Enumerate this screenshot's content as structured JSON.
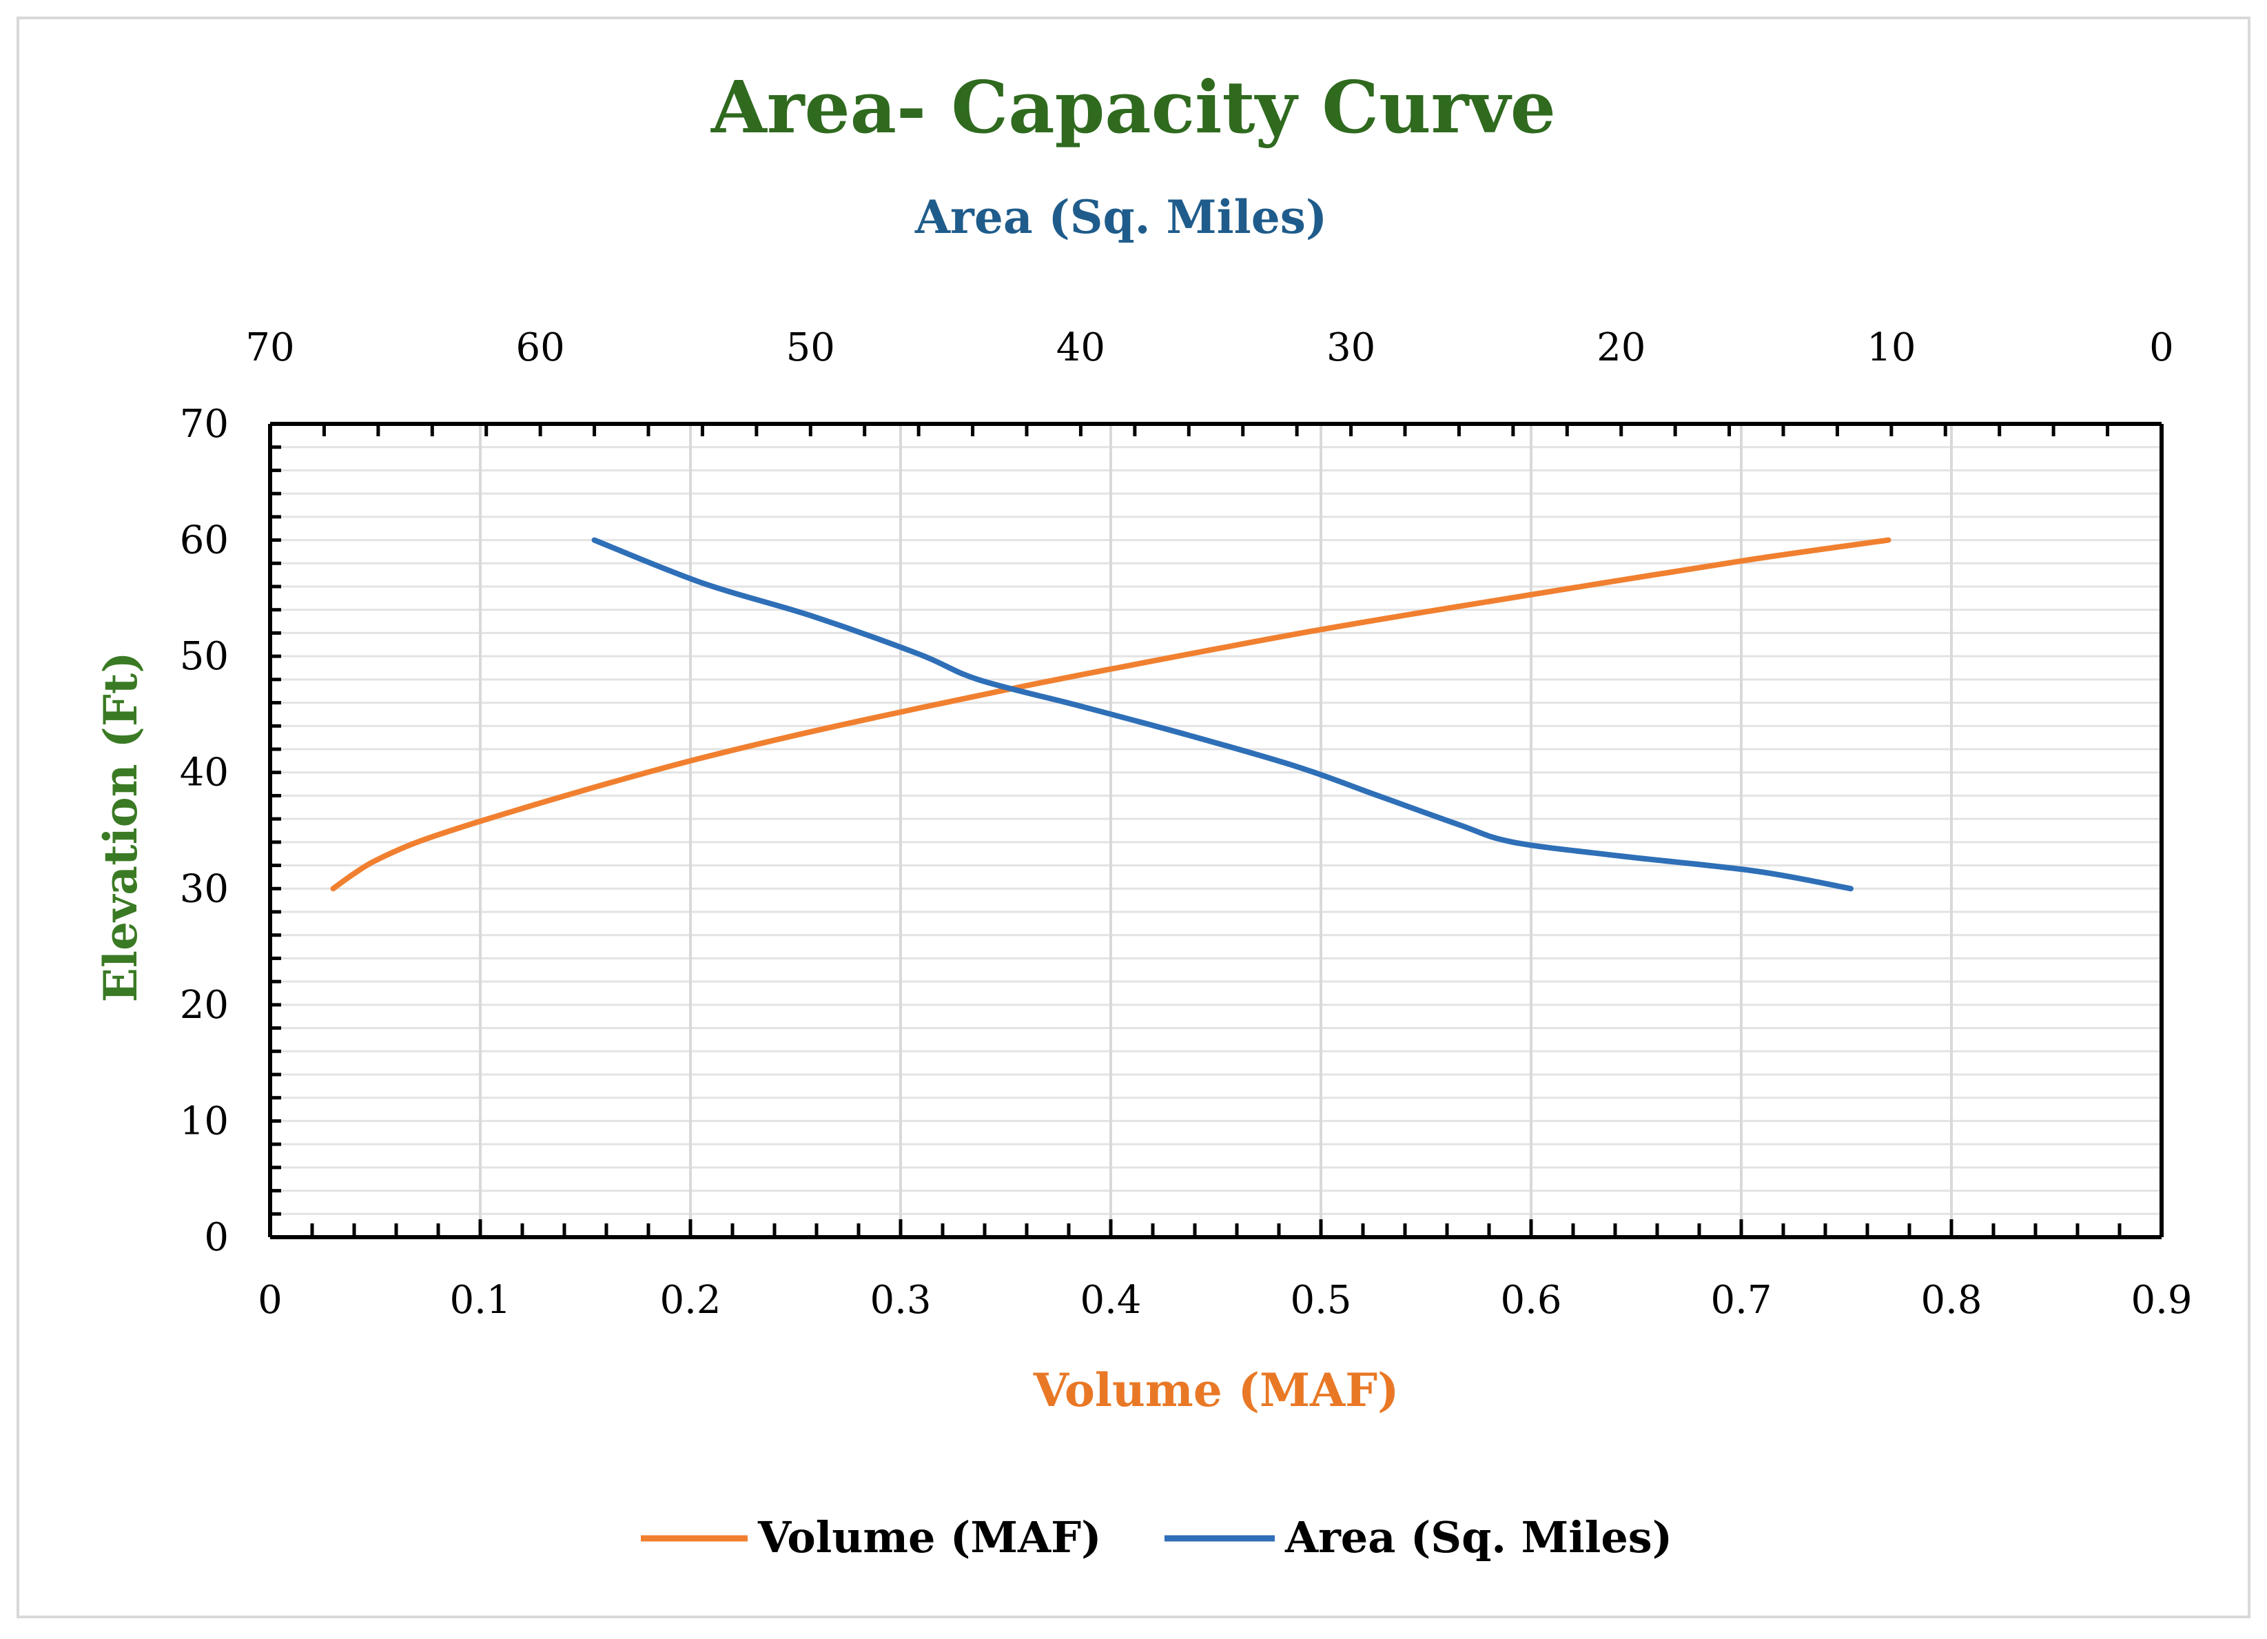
{
  "chart_data": {
    "type": "line",
    "title": "Area- Capacity Curve",
    "xlabel": "Volume (MAF)",
    "x2label": "Area (Sq. Miles)",
    "ylabel": "Elevation (Ft)",
    "xlim": [
      0,
      0.9
    ],
    "x2lim": [
      70,
      0
    ],
    "ylim": [
      0,
      70
    ],
    "x_ticks": [
      "0",
      "0.1",
      "0.2",
      "0.3",
      "0.4",
      "0.5",
      "0.6",
      "0.7",
      "0.8",
      "0.9"
    ],
    "x2_ticks": [
      "70",
      "60",
      "50",
      "40",
      "30",
      "20",
      "10",
      "0"
    ],
    "y_ticks": [
      "0",
      "10",
      "20",
      "30",
      "40",
      "50",
      "60",
      "70"
    ],
    "grid": true,
    "legend_position": "bottom",
    "series": [
      {
        "name": "Volume (MAF)",
        "axis": "x",
        "color": "#f08030",
        "x": [
          0.03,
          0.04,
          0.05,
          0.07,
          0.1,
          0.15,
          0.2,
          0.25,
          0.3,
          0.35,
          0.4,
          0.5,
          0.6,
          0.7,
          0.77
        ],
        "y": [
          30,
          31.3,
          32.4,
          34,
          35.8,
          38.5,
          41,
          43.2,
          45.2,
          47.1,
          48.9,
          52.3,
          55.3,
          58.2,
          60
        ]
      },
      {
        "name": "Area (Sq. Miles)",
        "axis": "x2",
        "color": "#2e6fb7",
        "x": [
          58,
          54,
          50,
          46,
          43.8,
          40,
          36,
          32,
          29,
          26,
          24,
          20,
          15,
          11.5
        ],
        "y": [
          60,
          56.3,
          53.5,
          50.2,
          48,
          45.7,
          43.2,
          40.5,
          38,
          35.5,
          34,
          32.8,
          31.5,
          30
        ]
      }
    ],
    "colors": {
      "title": "#2f6a1f",
      "area_axis_title": "#1f5c8b",
      "volume_axis_title": "#e97826",
      "elevation_axis_title": "#3a7a24"
    }
  }
}
